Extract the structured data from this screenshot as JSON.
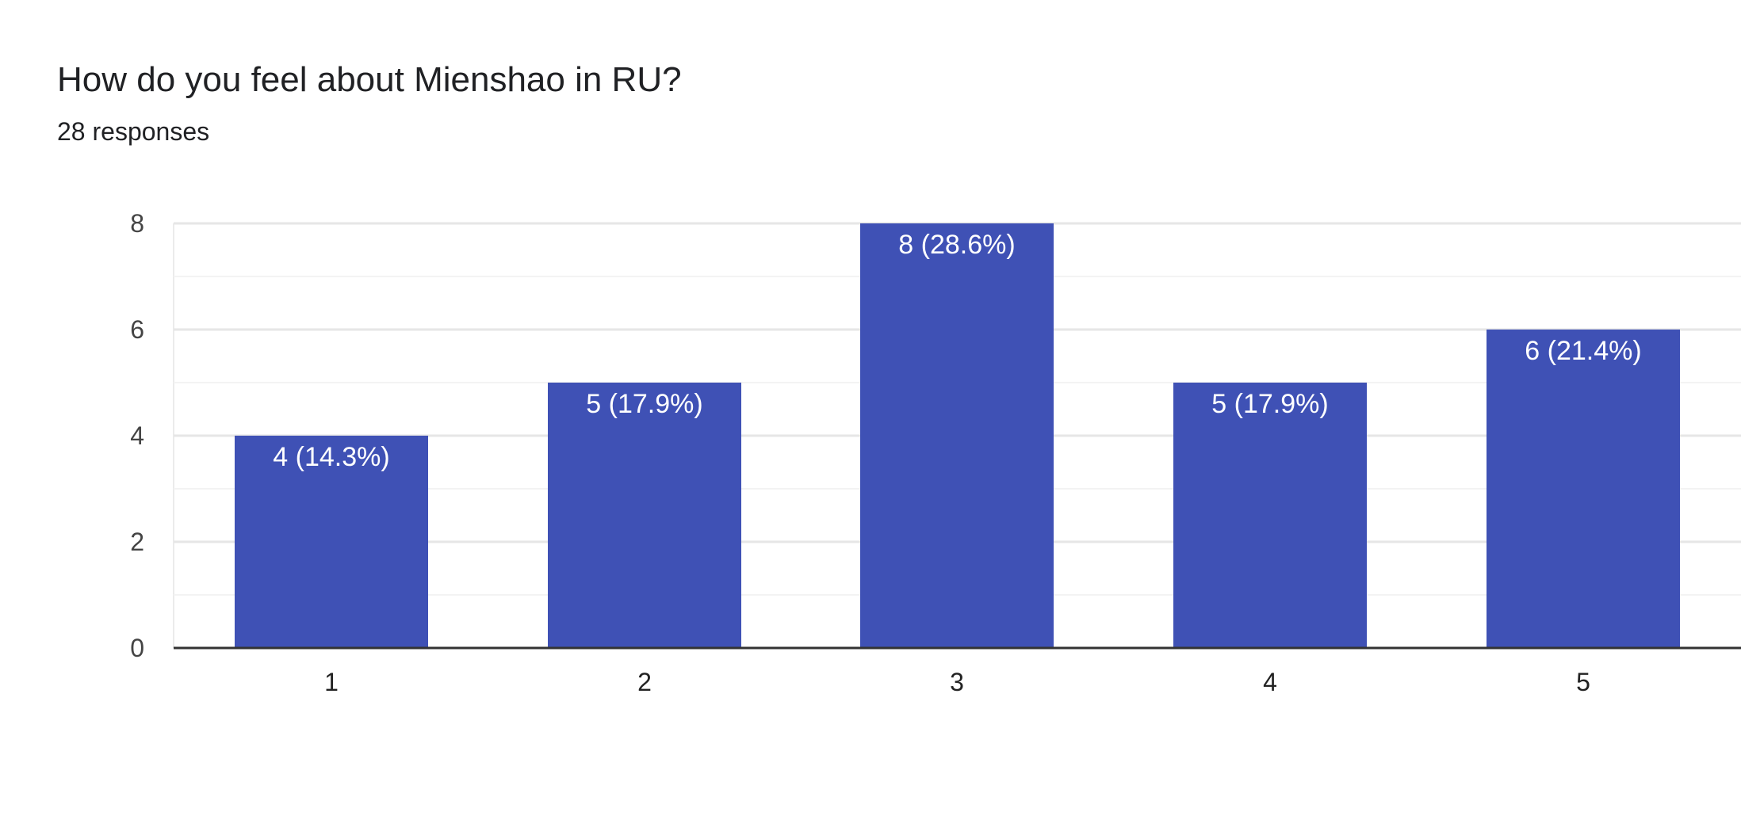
{
  "question": {
    "title": "How do you feel about Mienshao in RU?",
    "responses": "28 responses"
  },
  "colors": {
    "bar": "#3f51b5",
    "gridline": "#ebebeb",
    "baseline": "#333333"
  },
  "chart_data": {
    "type": "bar",
    "title": "How do you feel about Mienshao in RU?",
    "subtitle": "28 responses",
    "categories": [
      "1",
      "2",
      "3",
      "4",
      "5"
    ],
    "values": [
      4,
      5,
      8,
      5,
      6
    ],
    "data_labels": [
      "4 (14.3%)",
      "5 (17.9%)",
      "8 (28.6%)",
      "5 (17.9%)",
      "6 (21.4%)"
    ],
    "yticks": [
      0,
      2,
      4,
      6,
      8
    ],
    "ylim": [
      0,
      8
    ],
    "xlabel": "",
    "ylabel": "",
    "grid": true,
    "legend": "none"
  }
}
